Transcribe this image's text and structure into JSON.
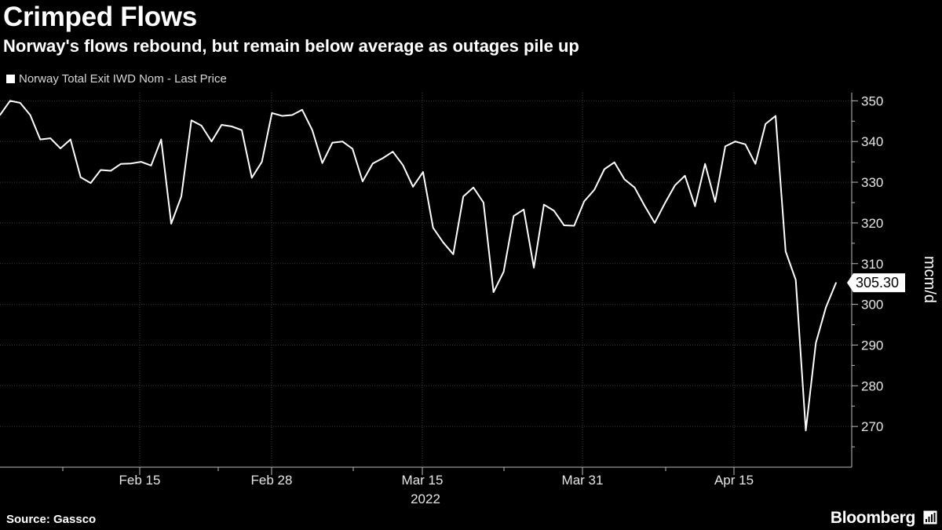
{
  "header": {
    "title": "Crimped Flows",
    "subtitle": "Norway's flows rebound, but remain below average as outages pile up"
  },
  "legend": {
    "label": "Norway Total Exit IWD Nom - Last Price"
  },
  "footer": {
    "source": "Source: Gassco",
    "brand": "Bloomberg"
  },
  "colors": {
    "background": "#000000",
    "line": "#ffffff",
    "grid": "#3a3a3a"
  },
  "chart_data": {
    "type": "line",
    "title": "Crimped Flows",
    "ylabel": "mcm/d",
    "ylim": [
      260,
      352
    ],
    "yticks": [
      270,
      280,
      290,
      300,
      310,
      320,
      330,
      340,
      350
    ],
    "x_tick_labels": [
      "Feb 15",
      "Feb 28",
      "Mar 15",
      "Mar 31",
      "Apr 15"
    ],
    "x_year_label": "2022",
    "last_value_label": "305.30",
    "series": [
      {
        "name": "Norway Total Exit IWD Nom - Last Price",
        "values": [
          346.5,
          350.0,
          349.5,
          346.5,
          340.5,
          340.8,
          338.3,
          340.5,
          331.2,
          329.8,
          333.0,
          332.8,
          334.5,
          334.6,
          335.0,
          334.1,
          340.5,
          319.8,
          326.5,
          345.2,
          343.9,
          340.0,
          344.1,
          343.7,
          342.8,
          331.1,
          335.0,
          347.0,
          346.3,
          346.5,
          347.8,
          342.8,
          334.7,
          339.7,
          340.0,
          338.2,
          330.2,
          334.6,
          335.9,
          337.5,
          334.2,
          328.9,
          332.5,
          318.8,
          315.2,
          312.3,
          326.5,
          328.7,
          325.0,
          303.0,
          308.0,
          321.7,
          323.3,
          309.0,
          324.5,
          323.0,
          319.4,
          319.3,
          325.3,
          328.1,
          333.2,
          334.9,
          330.7,
          328.7,
          324.2,
          320.0,
          324.8,
          329.2,
          331.6,
          324.1,
          334.5,
          325.2,
          338.8,
          340.0,
          339.3,
          334.5,
          344.3,
          346.3,
          313.0,
          306.0,
          269.0,
          290.5,
          299.3,
          305.3
        ]
      }
    ]
  }
}
